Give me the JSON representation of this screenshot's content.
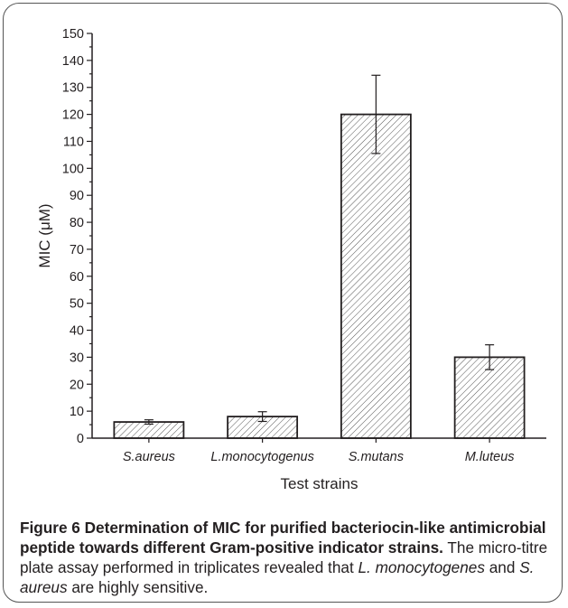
{
  "chart_data": {
    "type": "bar",
    "categories": [
      "S.aureus",
      "L.monocytogenus",
      "S.mutans",
      "M.luteus"
    ],
    "values": [
      6,
      8,
      120,
      30
    ],
    "errors": [
      0.8,
      1.8,
      14.5,
      4.6
    ],
    "xlabel": "Test strains",
    "ylabel": "MIC (μM)",
    "ylim": [
      0,
      150
    ],
    "yticks": [
      0,
      10,
      20,
      30,
      40,
      50,
      60,
      70,
      80,
      90,
      100,
      110,
      120,
      130,
      140,
      150
    ],
    "grid": false,
    "bar_fill": "diagonal hatch",
    "colors": {
      "bar_stroke": "#231f20",
      "hatch": "#555555",
      "axis": "#231f20"
    }
  },
  "caption": {
    "label": "Figure 6",
    "bold_text": " Determination of MIC for purified bacteriocin-like antimicrobial peptide towards different Gram-positive indicator strains.",
    "text_1": " The micro-titre plate assay performed in triplicates revealed that ",
    "species_1": "L. monocytogenes",
    "text_2": " and ",
    "species_2": "S. aureus",
    "text_3": " are highly sensitive."
  }
}
